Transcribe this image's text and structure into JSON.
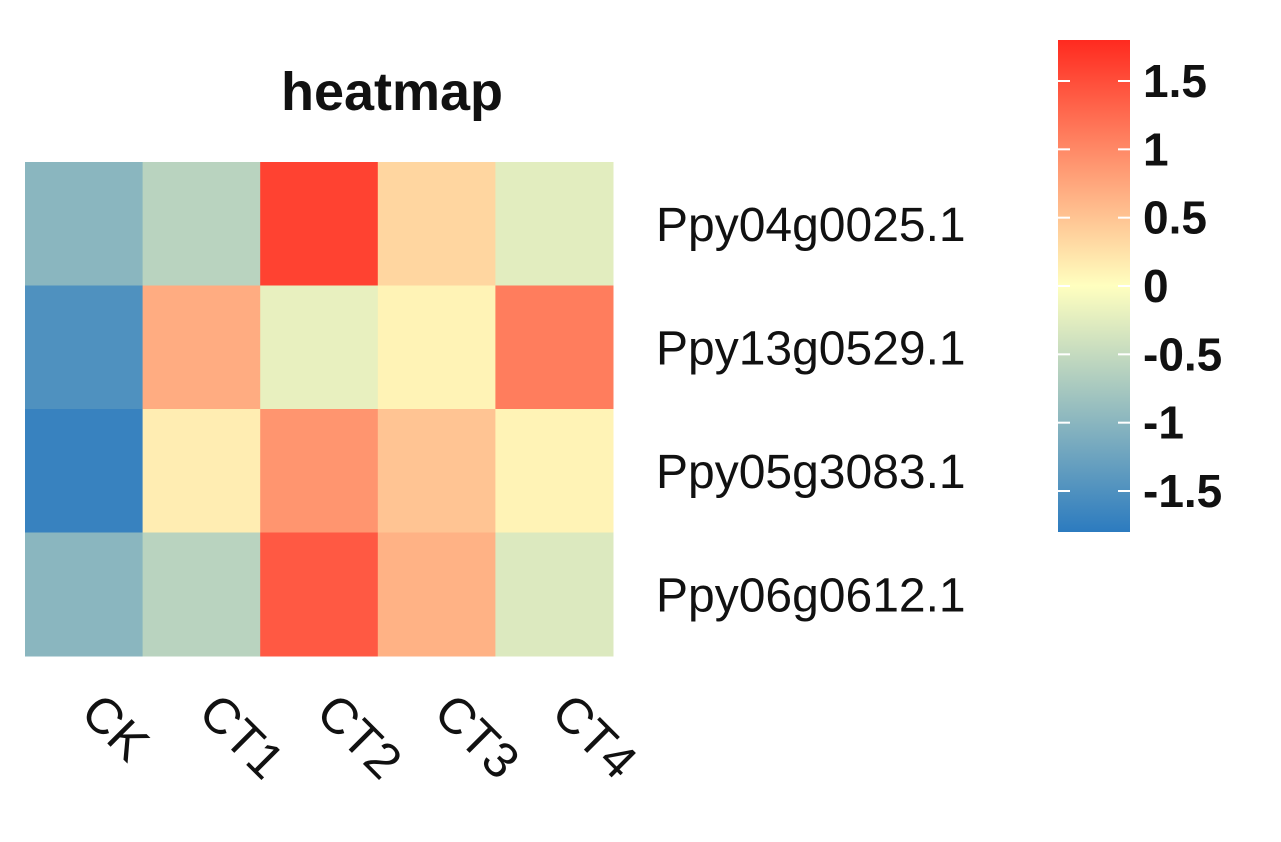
{
  "chart_data": {
    "type": "heatmap",
    "title": "heatmap",
    "columns": [
      "CK",
      "CT1",
      "CT2",
      "CT3",
      "CT4"
    ],
    "rows": [
      "Ppy04g0025.1",
      "Ppy13g0529.1",
      "Ppy05g3083.1",
      "Ppy06g0612.1"
    ],
    "values": [
      [
        -1.0,
        -0.6,
        1.6,
        0.35,
        -0.25
      ],
      [
        -1.5,
        0.7,
        -0.2,
        0.1,
        1.1
      ],
      [
        -1.7,
        0.15,
        0.9,
        0.5,
        0.1
      ],
      [
        -1.0,
        -0.6,
        1.4,
        0.65,
        -0.3
      ]
    ],
    "colorbar": {
      "range": [
        -1.8,
        1.8
      ],
      "ticks": [
        1.5,
        1,
        0.5,
        0,
        -0.5,
        -1,
        -1.5
      ],
      "tick_labels": [
        "1.5",
        "1",
        "0.5",
        "0",
        "-0.5",
        "-1",
        "-1.5"
      ],
      "colors": {
        "low": "#2c7bbf",
        "mid": "#ffffbf",
        "high": "#ff2a1f"
      }
    },
    "grid": false,
    "legend": "right"
  }
}
